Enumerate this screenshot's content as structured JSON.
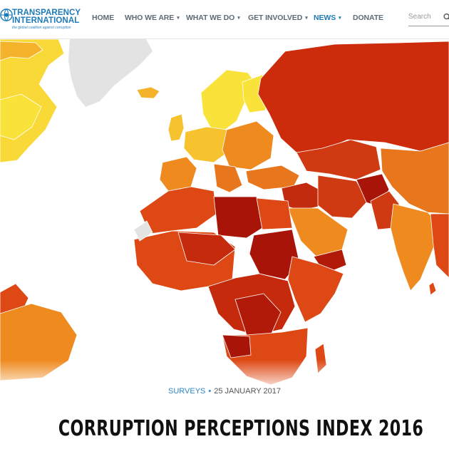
{
  "site": {
    "logo_line1": "TRANSPARENCY",
    "logo_line2": "INTERNATIONAL",
    "logo_tagline": "the global coalition against corruption"
  },
  "nav": {
    "items": [
      {
        "label": "HOME",
        "has_dropdown": false,
        "active": false
      },
      {
        "label": "WHO WE ARE",
        "has_dropdown": true,
        "active": false
      },
      {
        "label": "WHAT WE DO",
        "has_dropdown": true,
        "active": false
      },
      {
        "label": "GET INVOLVED",
        "has_dropdown": true,
        "active": false
      },
      {
        "label": "NEWS",
        "has_dropdown": true,
        "active": true
      },
      {
        "label": "DONATE",
        "has_dropdown": false,
        "active": false
      }
    ],
    "dropdown_glyph": "▾"
  },
  "search": {
    "placeholder": "Search",
    "icon": "search-icon"
  },
  "hero": {
    "image": "world-map-corruption-choropleth",
    "palette": {
      "very_clean": "#f9e23a",
      "clean": "#f5b32b",
      "moderate": "#ef8a1f",
      "corrupt": "#de4815",
      "very_corrupt": "#c52a0d",
      "most_corrupt": "#a81508",
      "no_data": "#e3e3e3"
    }
  },
  "article": {
    "category": "SURVEYS",
    "separator": "•",
    "date": "25 JANUARY 2017",
    "title": "CORRUPTION PERCEPTIONS INDEX 2016"
  },
  "colors": {
    "accent": "#1d7ab8",
    "nav_text": "#5e6b76"
  }
}
